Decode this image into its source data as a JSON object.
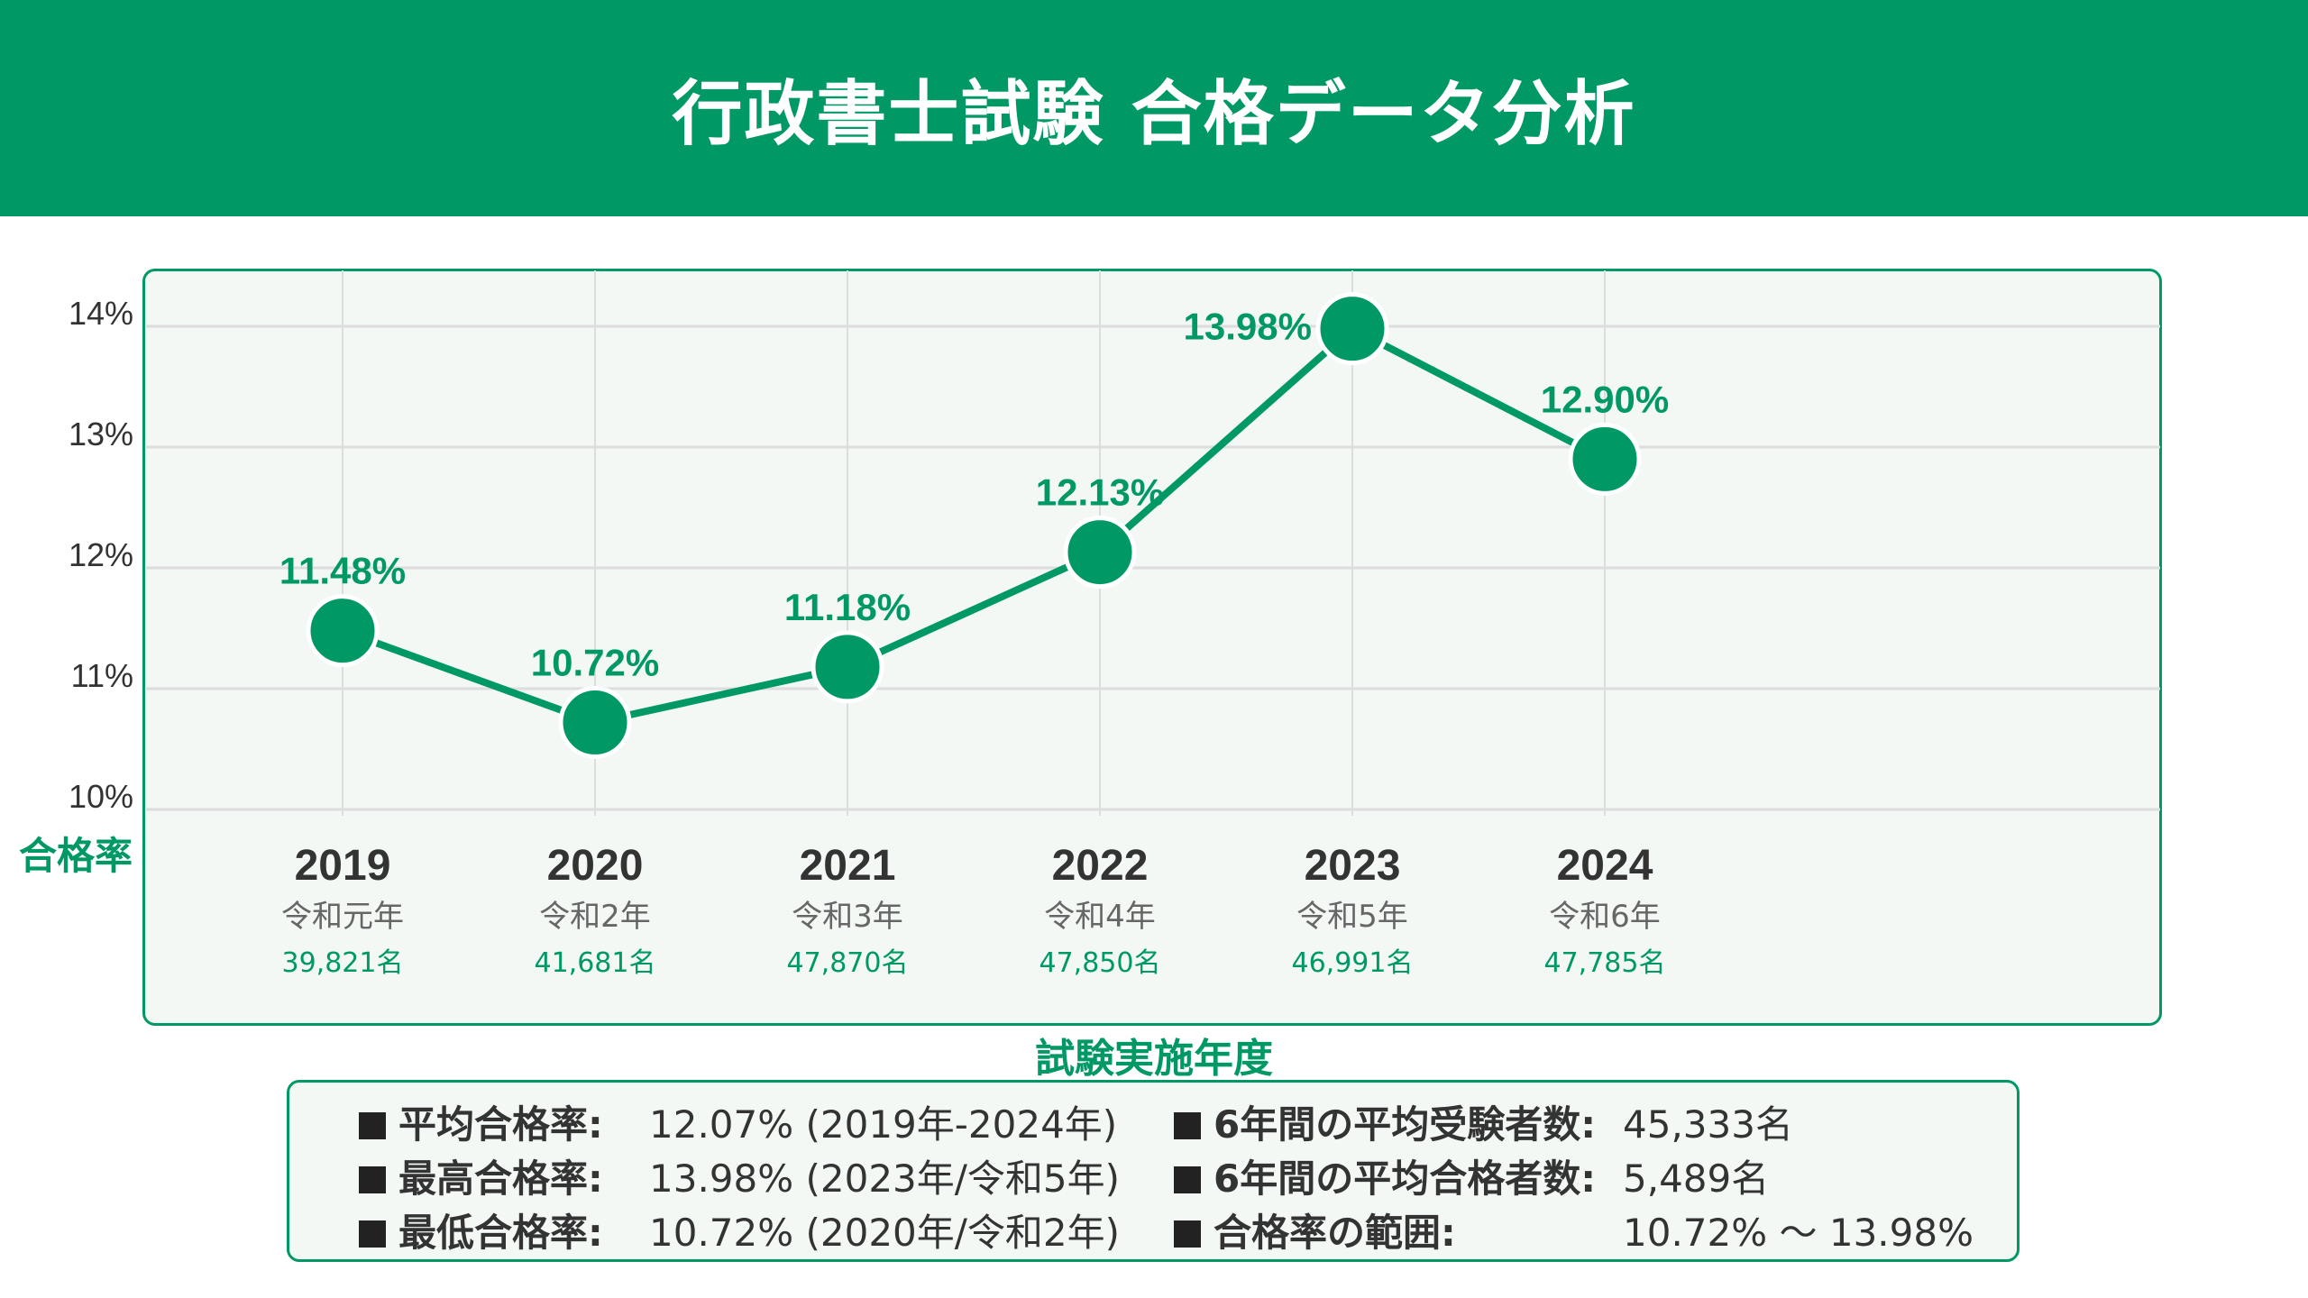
{
  "header": {
    "title": "行政書士試験  合格データ分析"
  },
  "chart_data": {
    "type": "line",
    "title": "",
    "ylabel": "合格率",
    "xlabel": "試験実施年度",
    "ylim": [
      10,
      14.5
    ],
    "y_ticks": [
      {
        "value": 14,
        "label": "14%"
      },
      {
        "value": 13,
        "label": "13%"
      },
      {
        "value": 12,
        "label": "12%"
      },
      {
        "value": 11,
        "label": "11%"
      },
      {
        "value": 10,
        "label": "10%"
      }
    ],
    "categories": [
      "2019",
      "2020",
      "2021",
      "2022",
      "2023",
      "2024"
    ],
    "category_sublabels": [
      "令和元年",
      "令和2年",
      "令和3年",
      "令和4年",
      "令和5年",
      "令和6年"
    ],
    "category_examinees": [
      "39,821名",
      "41,681名",
      "47,870名",
      "47,850名",
      "46,991名",
      "47,785名"
    ],
    "values": [
      11.48,
      10.72,
      11.18,
      12.13,
      13.98,
      12.9
    ],
    "data_labels": [
      "11.48%",
      "10.72%",
      "11.18%",
      "12.13%",
      "13.98%",
      "12.90%"
    ],
    "grid": true,
    "color": "#009966"
  },
  "summary": {
    "left": [
      {
        "label": "平均合格率:",
        "value": "12.07% (2019年-2024年)"
      },
      {
        "label": "最高合格率:",
        "value": "13.98% (2023年/令和5年)"
      },
      {
        "label": "最低合格率:",
        "value": "10.72% (2020年/令和2年)"
      }
    ],
    "right": [
      {
        "label": "6年間の平均受験者数:",
        "value": "45,333名"
      },
      {
        "label": "6年間の平均合格者数:",
        "value": "5,489名"
      },
      {
        "label": "合格率の範囲:",
        "value": "10.72% 〜 13.98%"
      }
    ]
  }
}
